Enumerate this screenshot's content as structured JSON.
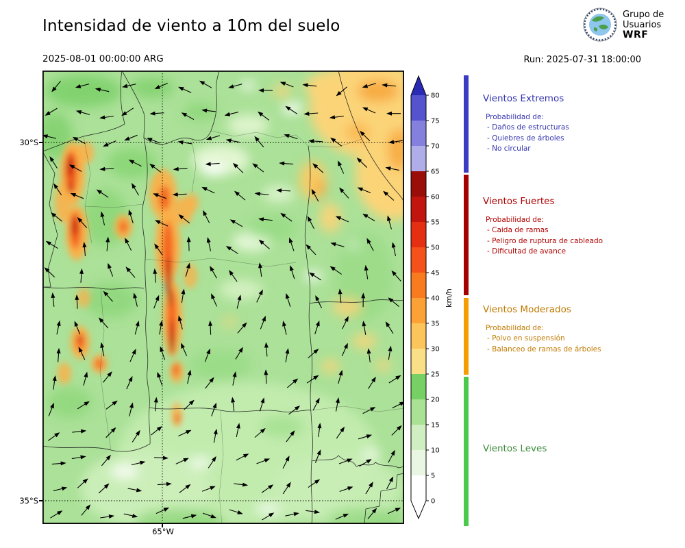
{
  "header": {
    "title": "Intensidad de viento a 10m del suelo",
    "valid_time": "2025-08-01 00:00:00 ARG",
    "run_label": "Run: 2025-07-31 18:00:00",
    "logo": {
      "line1": "Grupo de",
      "line2": "Usuarios",
      "line3": "WRF"
    }
  },
  "map": {
    "lat_ticks": [
      "30°S",
      "35°S"
    ],
    "lon_ticks": [
      "65°W"
    ]
  },
  "colorbar": {
    "unit": "km/h",
    "tick_values": [
      0,
      5,
      10,
      15,
      20,
      25,
      30,
      35,
      40,
      45,
      50,
      55,
      60,
      65,
      70,
      75,
      80
    ],
    "segment_colors": [
      "#ffffff",
      "#e9f7e2",
      "#cfeec2",
      "#aae295",
      "#77d063",
      "#fbdf87",
      "#fbc55c",
      "#fba135",
      "#f97b1f",
      "#f5521b",
      "#e52f12",
      "#c2150e",
      "#9a0e0a",
      "#b0aee8",
      "#8381dd",
      "#5553cd"
    ],
    "over_color": "#2b2ab4",
    "under_color": "#ffffff"
  },
  "legend": {
    "sections": [
      {
        "title": "Vientos Extremos",
        "bar_color": "#3c3bc4",
        "text_color": "#3434b0",
        "prob_label": "Probabilidad de:",
        "items": [
          "- Daños de estructuras",
          "- Quiebres de árboles",
          "- No circular"
        ]
      },
      {
        "title": "Vientos Fuertes",
        "bar_color": "#a50000",
        "text_color": "#b00000",
        "prob_label": "Probabilidad de:",
        "items": [
          "- Caida de ramas",
          "- Peligro de ruptura de cableado",
          "- Dificultad de avance"
        ]
      },
      {
        "title": "Vientos Moderados",
        "bar_color": "#f59d00",
        "text_color": "#c07a00",
        "prob_label": "Probabilidad de:",
        "items": [
          "- Polvo en suspensión",
          "- Balanceo de ramas de árboles"
        ]
      },
      {
        "title": "Vientos Leves",
        "bar_color": "#4bc94b",
        "text_color": "#3d8b3d",
        "prob_label": "",
        "items": []
      }
    ]
  }
}
